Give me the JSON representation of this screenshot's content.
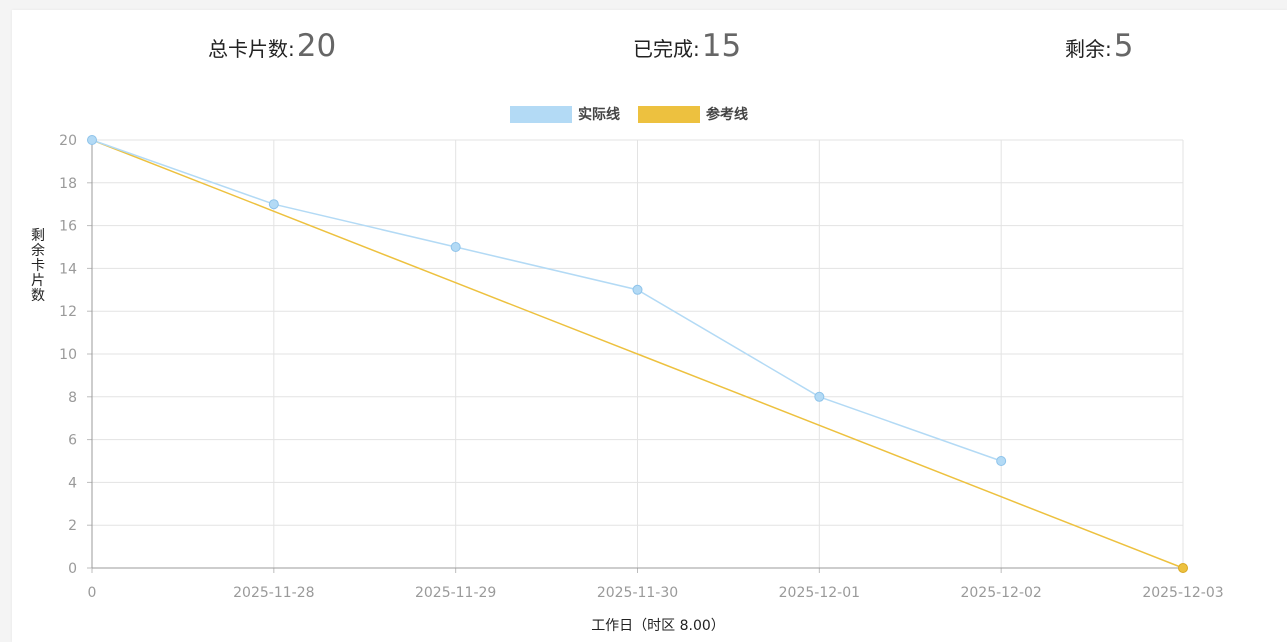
{
  "summary": {
    "total_label": "总卡片数:",
    "total_value": "20",
    "done_label": "已完成:",
    "done_value": "15",
    "remaining_label": "剩余:",
    "remaining_value": "5"
  },
  "chart_data": {
    "type": "line",
    "title": "",
    "xlabel": "工作日（时区 8.00）",
    "ylabel": "剩余卡片数",
    "categories": [
      "0",
      "2025-11-28",
      "2025-11-29",
      "2025-11-30",
      "2025-12-01",
      "2025-12-02",
      "2025-12-03"
    ],
    "ylim": [
      0,
      20
    ],
    "yticks": [
      0,
      2,
      4,
      6,
      8,
      10,
      12,
      14,
      16,
      18,
      20
    ],
    "grid": true,
    "legend_position": "top-center",
    "series": [
      {
        "name": "实际线",
        "color": "#b3daf5",
        "values": [
          20,
          17,
          15,
          13,
          8,
          5,
          null
        ]
      },
      {
        "name": "参考线",
        "color": "#edc13f",
        "values": [
          20,
          16.67,
          13.33,
          10,
          6.67,
          3.33,
          0
        ]
      }
    ]
  }
}
